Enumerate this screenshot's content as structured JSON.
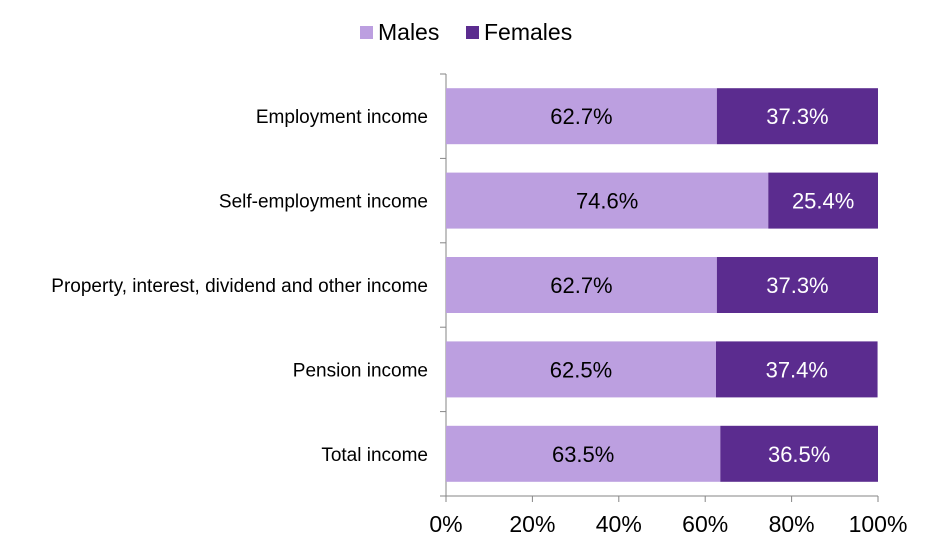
{
  "chart_data": {
    "type": "bar",
    "orientation": "horizontal",
    "stacked": true,
    "categories": [
      "Employment income",
      "Self-employment income",
      "Property, interest, dividend and other income",
      "Pension income",
      "Total income"
    ],
    "series": [
      {
        "name": "Males",
        "color": "#BC9FE0",
        "values": [
          62.7,
          74.6,
          62.7,
          62.5,
          63.5
        ],
        "labels": [
          "62.7%",
          "74.6%",
          "62.7%",
          "62.5%",
          "63.5%"
        ]
      },
      {
        "name": "Females",
        "color": "#5B2C8F",
        "values": [
          37.3,
          25.4,
          37.3,
          37.4,
          36.5
        ],
        "labels": [
          "37.3%",
          "25.4%",
          "37.3%",
          "37.4%",
          "36.5%"
        ]
      }
    ],
    "xlim": [
      0,
      100
    ],
    "xticks": [
      "0%",
      "20%",
      "40%",
      "60%",
      "80%",
      "100%"
    ],
    "legend_position": "top",
    "grid": false
  }
}
